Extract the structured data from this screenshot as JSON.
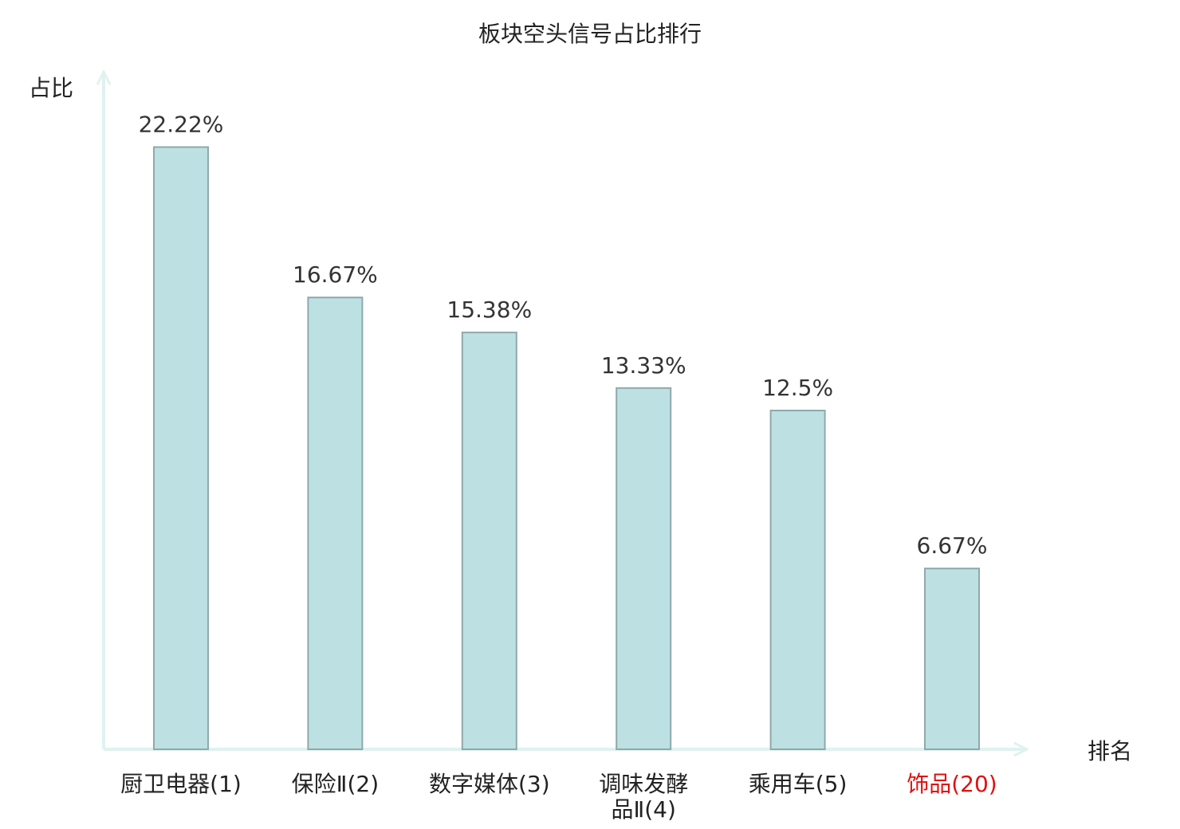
{
  "chart_data": {
    "type": "bar",
    "title": "板块空头信号占比排行",
    "ylabel": "占比",
    "xlabel": "排名",
    "categories": [
      [
        "厨卫电器(1)"
      ],
      [
        "保险Ⅱ(2)"
      ],
      [
        "数字媒体(3)"
      ],
      [
        "调味发酵",
        "品Ⅱ(4)"
      ],
      [
        "乘用车(5)"
      ],
      [
        "饰品(20)"
      ]
    ],
    "values": [
      22.22,
      16.67,
      15.38,
      13.33,
      12.5,
      6.67
    ],
    "value_labels": [
      "22.22%",
      "16.67%",
      "15.38%",
      "13.33%",
      "12.5%",
      "6.67%"
    ],
    "highlight_index": 5,
    "ylim": [
      0,
      25
    ],
    "grid": false,
    "colors": {
      "bar_fill": "#bde0e3",
      "bar_stroke": "#8fa9ab",
      "axis": "#dff2ef",
      "text": "#222222",
      "value_text": "#333333",
      "highlight": "#e01010"
    }
  }
}
